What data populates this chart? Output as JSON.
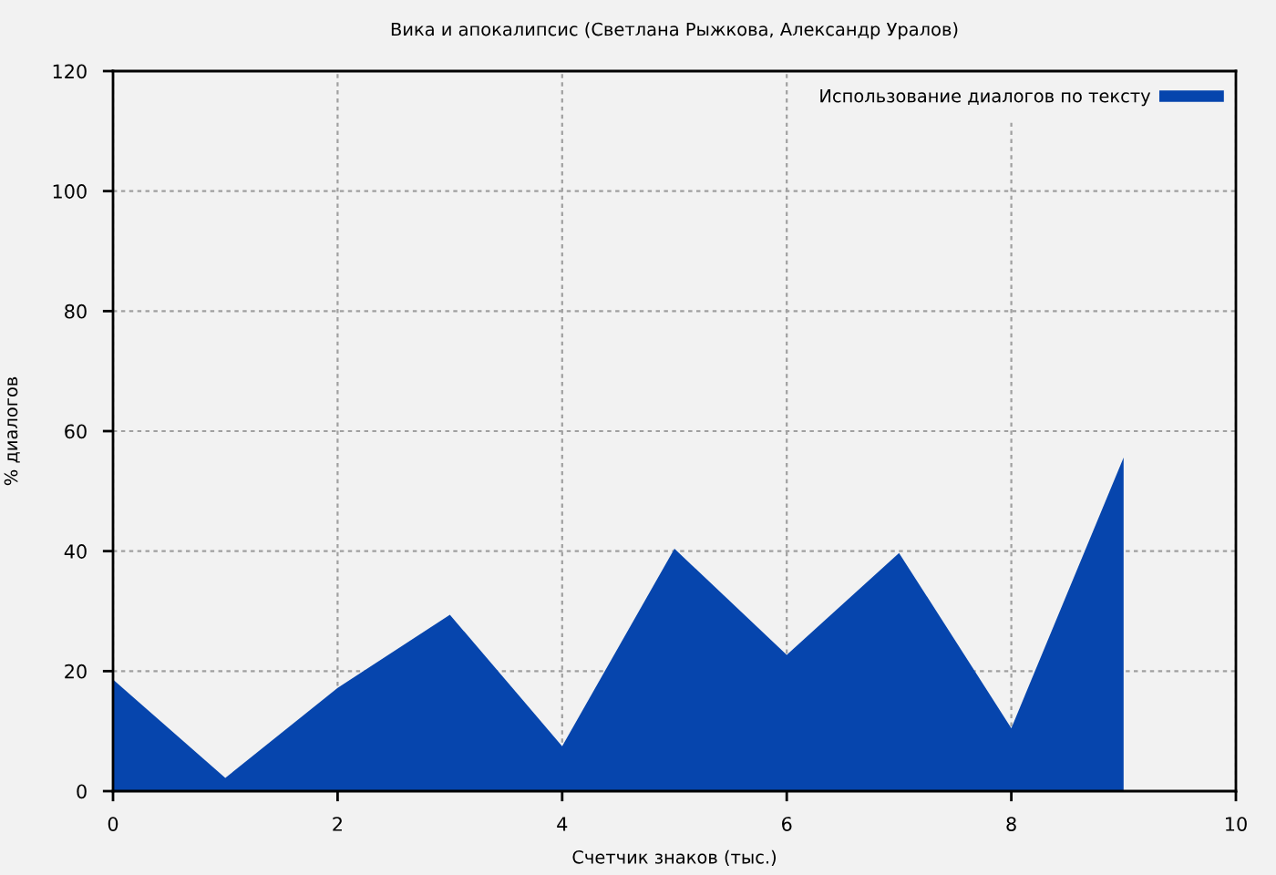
{
  "chart_data": {
    "type": "area",
    "title": "Вика и апокалипсис (Светлана Рыжкова, Александр Уралов)",
    "xlabel": "Счетчик знаков (тыс.)",
    "ylabel": "% диалогов",
    "x": [
      0,
      1,
      2,
      3,
      4,
      5,
      6,
      7,
      8,
      9
    ],
    "series": [
      {
        "name": "Использование диалогов по тексту",
        "color": "#0645ad",
        "values": [
          18.6,
          2.2,
          17.2,
          29.4,
          7.5,
          40.4,
          22.7,
          39.7,
          10.5,
          55.6
        ]
      }
    ],
    "xlim": [
      0,
      10
    ],
    "xticks": [
      0,
      2,
      4,
      6,
      8,
      10
    ],
    "ylim": [
      0,
      120
    ],
    "yticks": [
      0,
      20,
      40,
      60,
      80,
      100,
      120
    ],
    "grid": true,
    "legend": "top right"
  }
}
